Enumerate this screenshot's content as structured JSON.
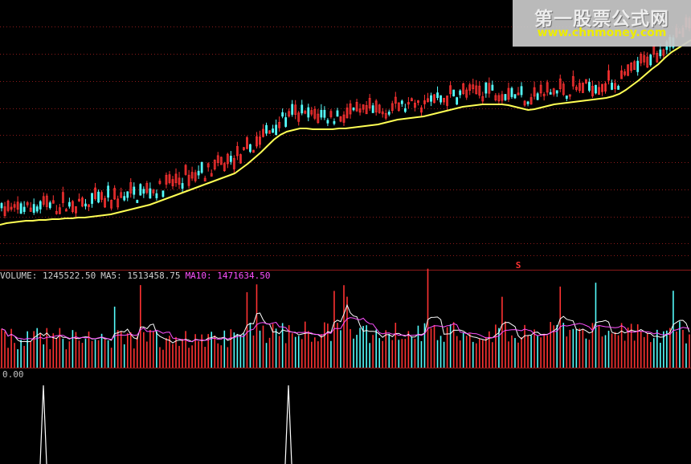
{
  "watermark": {
    "title": "第一股票公式网",
    "url": "www.chnmoney.com"
  },
  "colors": {
    "background": "#000000",
    "grid": "#8b1a1a",
    "up": "#ff3232",
    "down": "#54fcfc",
    "ma_price": "#ffff54",
    "ma5": "#ffffff",
    "ma10": "#ff50ff",
    "signal": "#ff3232"
  },
  "volume_panel": {
    "label": "VOLUME: 1245522.50",
    "ma5_label": "MA5: 1513458.75",
    "ma10_label": "MA10: 1471634.50"
  },
  "indicator_panel": {
    "label": "0.00"
  },
  "chart_data": [
    {
      "type": "candlestick",
      "panel": "price",
      "grid": true,
      "candle_count": 214,
      "ma_line": [
        20,
        22,
        23,
        24,
        25,
        25,
        26,
        26,
        27,
        27,
        28,
        28,
        29,
        29,
        30,
        31,
        32,
        33,
        35,
        37,
        39,
        41,
        43,
        45,
        48,
        51,
        54,
        57,
        60,
        63,
        66,
        69,
        72,
        75,
        78,
        81,
        84,
        90,
        96,
        103,
        110,
        118,
        126,
        132,
        136,
        138,
        140,
        140,
        139,
        139,
        139,
        139,
        140,
        140,
        141,
        142,
        143,
        144,
        145,
        147,
        149,
        151,
        152,
        153,
        154,
        155,
        157,
        159,
        161,
        163,
        165,
        167,
        168,
        169,
        170,
        170,
        170,
        170,
        169,
        167,
        165,
        163,
        164,
        166,
        168,
        170,
        171,
        172,
        173,
        174,
        175,
        176,
        177,
        178,
        180,
        183,
        188,
        194,
        200,
        207,
        214,
        220,
        228,
        235,
        240,
        245,
        250
      ],
      "signals": [
        "S"
      ]
    },
    {
      "type": "bar",
      "panel": "volume",
      "series": [
        {
          "name": "VOLUME",
          "last": 1245522.5
        },
        {
          "name": "MA5",
          "last": 1513458.75
        },
        {
          "name": "MA10",
          "last": 1471634.5
        }
      ]
    },
    {
      "type": "line",
      "panel": "indicator",
      "baseline": 0.0,
      "spikes": 2
    }
  ]
}
